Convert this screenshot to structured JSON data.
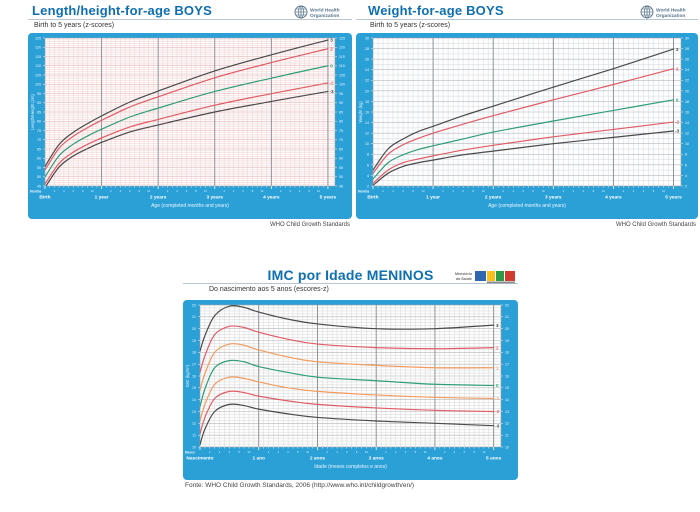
{
  "colors": {
    "panel_blue": "#2BA0D7",
    "title_blue": "#0E6FB1",
    "plot_bg": "#fdfdfd",
    "curve_black": "#4a4a4a",
    "curve_red": "#e05c66",
    "curve_green": "#2f9e77",
    "curve_orange": "#f29b5f"
  },
  "chart_data": [
    {
      "type": "line",
      "title": "Length/height-for-age BOYS",
      "subtitle": "Birth to 5 years (z-scores)",
      "logo": "who",
      "logo_lines": [
        "World Health",
        "Organization"
      ],
      "xlabel": "Age (completed months and years)",
      "ylabel": "Length/Height (cm)",
      "footer": "WHO Child Growth Standards",
      "x_unit_label": "Months",
      "x_tick_labels": [
        "Birth",
        "1 year",
        "2 years",
        "3 years",
        "4 years",
        "5 years"
      ],
      "x_months": [
        0,
        3,
        6,
        9,
        12,
        18,
        24,
        36,
        48,
        60
      ],
      "xlim_months": [
        0,
        60
      ],
      "ylim": [
        45,
        125
      ],
      "y_label_step": 5,
      "grid": true,
      "legend_position": "right-edge-z-labels",
      "series": [
        {
          "name": "3",
          "color": "#4a4a4a",
          "values": [
            55.6,
            67.5,
            74.0,
            78.7,
            82.9,
            90.4,
            96.3,
            107.2,
            115.9,
            123.9
          ]
        },
        {
          "name": "2",
          "color": "#e05c66",
          "values": [
            53.7,
            65.5,
            71.9,
            76.5,
            80.5,
            87.7,
            93.2,
            103.5,
            111.7,
            119.2
          ]
        },
        {
          "name": "0",
          "color": "#2f9e77",
          "values": [
            49.9,
            61.4,
            67.6,
            72.0,
            75.7,
            82.3,
            87.1,
            96.1,
            103.3,
            110.0
          ]
        },
        {
          "name": "-2",
          "color": "#e05c66",
          "values": [
            46.1,
            57.3,
            63.3,
            67.5,
            71.0,
            76.9,
            81.0,
            88.7,
            94.9,
            100.7
          ]
        },
        {
          "name": "-3",
          "color": "#4a4a4a",
          "values": [
            44.2,
            55.3,
            61.2,
            65.2,
            68.6,
            74.2,
            78.0,
            85.0,
            90.7,
            96.1
          ]
        }
      ]
    },
    {
      "type": "line",
      "title": "Weight-for-age BOYS",
      "subtitle": "Birth to 5 years (z-scores)",
      "logo": "who",
      "logo_lines": [
        "World Health",
        "Organization"
      ],
      "xlabel": "Age (completed months and years)",
      "ylabel": "Weight (kg)",
      "footer": "WHO Child Growth Standards",
      "x_unit_label": "Months",
      "x_tick_labels": [
        "Birth",
        "1 year",
        "2 years",
        "3 years",
        "4 years",
        "5 years"
      ],
      "x_months": [
        0,
        3,
        6,
        9,
        12,
        18,
        24,
        36,
        48,
        60
      ],
      "xlim_months": [
        0,
        60
      ],
      "ylim": [
        2,
        30
      ],
      "y_label_step": 2,
      "grid": true,
      "legend_position": "right-edge-z-labels",
      "series": [
        {
          "name": "3",
          "color": "#4a4a4a",
          "values": [
            5.0,
            9.0,
            10.9,
            12.3,
            13.3,
            15.3,
            17.1,
            20.7,
            24.2,
            27.9
          ]
        },
        {
          "name": "2",
          "color": "#e05c66",
          "values": [
            4.4,
            8.0,
            9.8,
            11.0,
            12.0,
            13.7,
            15.3,
            18.3,
            21.2,
            24.2
          ]
        },
        {
          "name": "0",
          "color": "#2f9e77",
          "values": [
            3.3,
            6.4,
            7.9,
            8.9,
            9.6,
            10.9,
            12.2,
            14.3,
            16.3,
            18.3
          ]
        },
        {
          "name": "-2",
          "color": "#e05c66",
          "values": [
            2.5,
            5.0,
            6.4,
            7.1,
            7.7,
            8.8,
            9.7,
            11.3,
            12.7,
            14.1
          ]
        },
        {
          "name": "-3",
          "color": "#4a4a4a",
          "values": [
            2.1,
            4.4,
            5.7,
            6.4,
            6.9,
            7.9,
            8.6,
            10.0,
            11.2,
            12.4
          ]
        }
      ]
    },
    {
      "type": "line",
      "title": "IMC por Idade MENINOS",
      "subtitle": "Do nascimento aos 5 anos (escores-z)",
      "logo": "brasil",
      "logo_lines": [
        "Ministério",
        "da Saúde"
      ],
      "xlabel": "Idade (meses completos e anos)",
      "ylabel": "IMC (kg/m²)",
      "footer": "Fonte: WHO Child Growth Standards, 2006 (http://www.who.int/childgrowth/en/)",
      "x_unit_label": "Meses",
      "x_tick_labels": [
        "Nascimento",
        "1 ano",
        "2 anos",
        "3 anos",
        "4 anos",
        "5 anos"
      ],
      "x_months": [
        0,
        1,
        3,
        6,
        9,
        12,
        18,
        24,
        36,
        48,
        60
      ],
      "xlim_months": [
        0,
        60
      ],
      "ylim": [
        10,
        22
      ],
      "y_label_step": 1,
      "grid": true,
      "legend_position": "right-edge-z-labels",
      "series": [
        {
          "name": "3",
          "color": "#4a4a4a",
          "values": [
            18.1,
            19.4,
            21.1,
            21.9,
            21.8,
            21.4,
            20.8,
            20.4,
            20.0,
            20.0,
            20.3
          ]
        },
        {
          "name": "2",
          "color": "#e05c66",
          "values": [
            16.3,
            17.7,
            19.5,
            20.2,
            20.1,
            19.7,
            19.1,
            18.7,
            18.4,
            18.3,
            18.4
          ]
        },
        {
          "name": "1",
          "color": "#f29b5f",
          "values": [
            14.8,
            16.2,
            18.0,
            18.7,
            18.6,
            18.2,
            17.6,
            17.2,
            16.9,
            16.7,
            16.7
          ]
        },
        {
          "name": "0",
          "color": "#2f9e77",
          "values": [
            13.4,
            14.9,
            16.7,
            17.3,
            17.2,
            16.8,
            16.3,
            15.9,
            15.6,
            15.3,
            15.2
          ]
        },
        {
          "name": "-1",
          "color": "#f29b5f",
          "values": [
            12.2,
            13.6,
            15.3,
            15.9,
            15.8,
            15.5,
            15.0,
            14.7,
            14.4,
            14.2,
            14.1
          ]
        },
        {
          "name": "-2",
          "color": "#e05c66",
          "values": [
            11.1,
            12.5,
            14.1,
            14.7,
            14.6,
            14.3,
            13.9,
            13.6,
            13.3,
            13.1,
            13.0
          ]
        },
        {
          "name": "-3",
          "color": "#4a4a4a",
          "values": [
            10.2,
            11.5,
            13.0,
            13.6,
            13.5,
            13.2,
            12.8,
            12.5,
            12.2,
            12.0,
            11.8
          ]
        }
      ]
    }
  ]
}
